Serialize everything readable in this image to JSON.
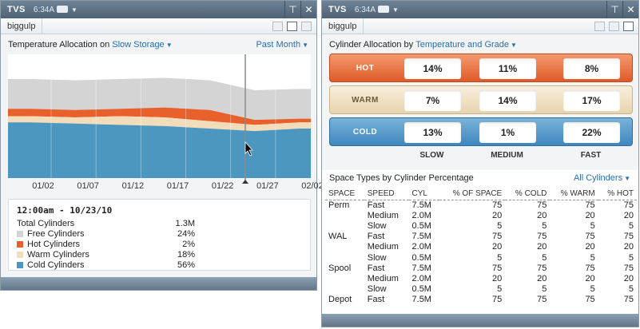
{
  "left": {
    "app": "TVS",
    "time": "6:34A",
    "host": "biggulp",
    "title_prefix": "Temperature Allocation on",
    "storage": "Slow Storage",
    "period": "Past Month",
    "legend": {
      "range": "12:00am - 10/23/10",
      "total_label": "Total Cylinders",
      "total_value": "1.3M",
      "items": [
        {
          "label": "Free Cylinders",
          "value": "24%",
          "color": "#d4d4d4"
        },
        {
          "label": "Hot Cylinders",
          "value": "2%",
          "color": "#e8602c"
        },
        {
          "label": "Warm Cylinders",
          "value": "18%",
          "color": "#f2dcba"
        },
        {
          "label": "Cold Cylinders",
          "value": "56%",
          "color": "#4b97c0"
        }
      ]
    }
  },
  "chart_data": {
    "type": "area",
    "x": [
      "01/02",
      "01/07",
      "01/12",
      "01/17",
      "01/22",
      "01/27",
      "02/02"
    ],
    "series": [
      {
        "name": "Free Cylinders",
        "color": "#d4d4d4",
        "values": [
          24,
          24,
          24,
          24,
          24,
          24,
          24
        ]
      },
      {
        "name": "Hot Cylinders",
        "color": "#e8602c",
        "values": [
          6,
          6,
          6,
          8,
          9,
          4,
          3
        ]
      },
      {
        "name": "Warm Cylinders",
        "color": "#f2dcba",
        "values": [
          5,
          5,
          7,
          7,
          6,
          5,
          5
        ]
      },
      {
        "name": "Cold Cylinders",
        "color": "#4b97c0",
        "values": [
          45,
          44,
          43,
          42,
          40,
          38,
          40
        ]
      }
    ],
    "ylim": [
      0,
      100
    ]
  },
  "right": {
    "app": "TVS",
    "time": "6:34A",
    "host": "biggulp",
    "title_prefix": "Cylinder Allocation by",
    "dimension": "Temperature and Grade",
    "rows": [
      {
        "label": "HOT",
        "values": [
          "14%",
          "11%",
          "8%"
        ]
      },
      {
        "label": "WARM",
        "values": [
          "7%",
          "14%",
          "17%"
        ]
      },
      {
        "label": "COLD",
        "values": [
          "13%",
          "1%",
          "22%"
        ]
      }
    ],
    "grades": [
      "SLOW",
      "MEDIUM",
      "FAST"
    ],
    "space_title": "Space Types by Cylinder Percentage",
    "space_filter": "All Cylinders",
    "table": {
      "headers": [
        "SPACE",
        "SPEED",
        "CYL",
        "% OF SPACE",
        "% COLD",
        "% WARM",
        "% HOT"
      ],
      "rows": [
        [
          "Perm",
          "Fast",
          "7.5M",
          "75",
          "75",
          "75",
          "75"
        ],
        [
          "",
          "Medium",
          "2.0M",
          "20",
          "20",
          "20",
          "20"
        ],
        [
          "",
          "Slow",
          "0.5M",
          "5",
          "5",
          "5",
          "5"
        ],
        [
          "WAL",
          "Fast",
          "7.5M",
          "75",
          "75",
          "75",
          "75"
        ],
        [
          "",
          "Medium",
          "2.0M",
          "20",
          "20",
          "20",
          "20"
        ],
        [
          "",
          "Slow",
          "0.5M",
          "5",
          "5",
          "5",
          "5"
        ],
        [
          "Spool",
          "Fast",
          "7.5M",
          "75",
          "75",
          "75",
          "75"
        ],
        [
          "",
          "Medium",
          "2.0M",
          "20",
          "20",
          "20",
          "20"
        ],
        [
          "",
          "Slow",
          "0.5M",
          "5",
          "5",
          "5",
          "5"
        ],
        [
          "Depot",
          "Fast",
          "7.5M",
          "75",
          "75",
          "75",
          "75"
        ]
      ]
    }
  }
}
